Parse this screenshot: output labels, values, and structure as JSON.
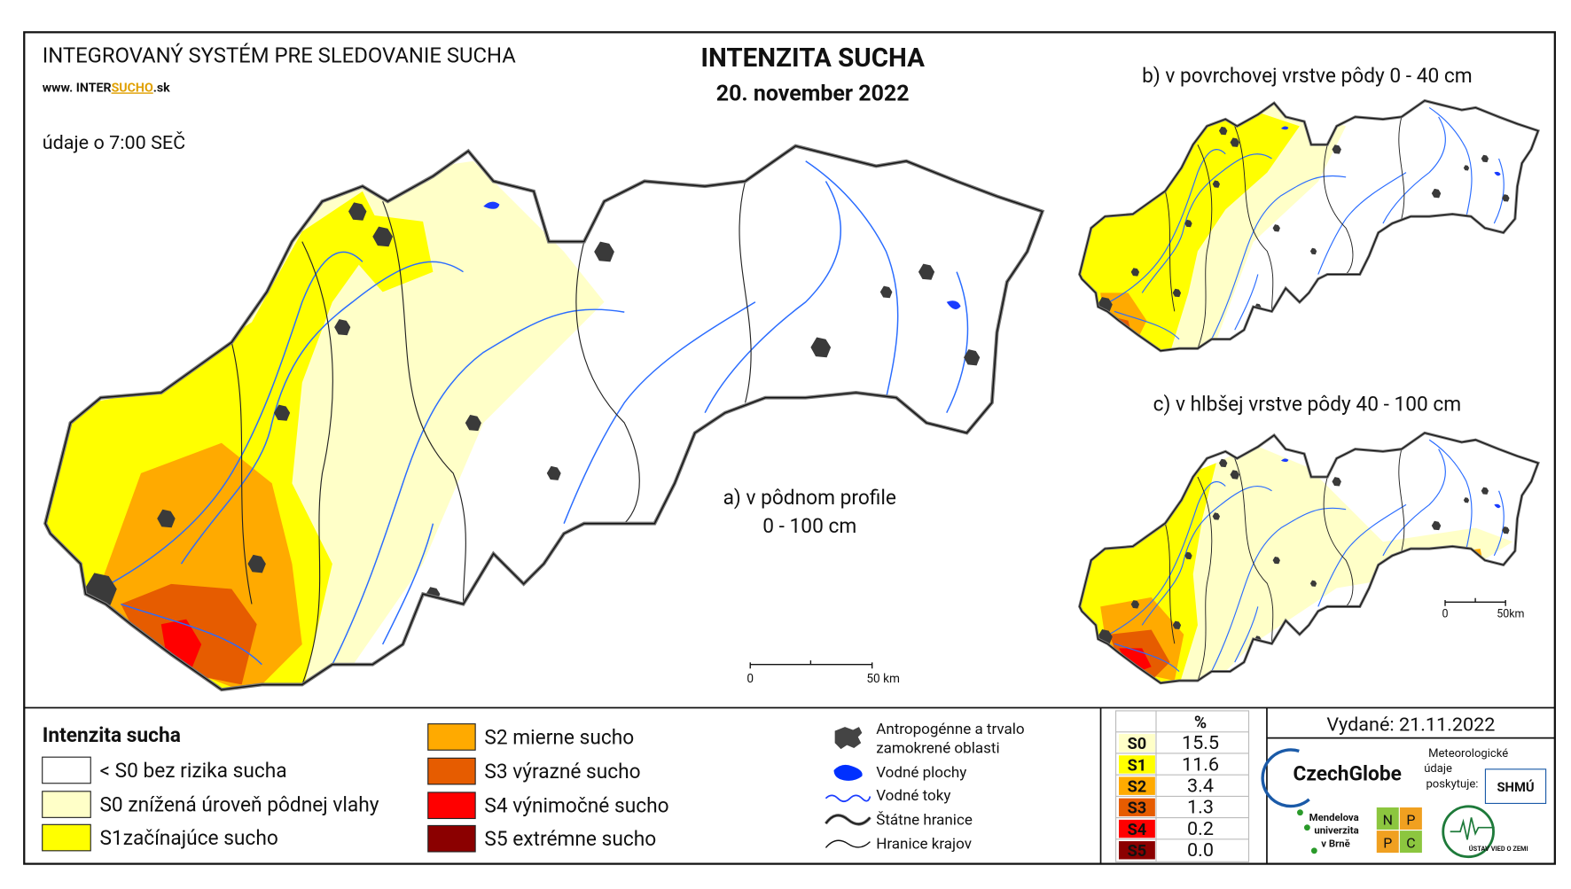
{
  "header": {
    "system": "INTEGROVANÝ SYSTÉM PRE SLEDOVANIE SUCHA",
    "website_prefix": "www. INTER",
    "website_highlight": "SUCHO",
    "website_suffix": ".sk",
    "time_note": "údaje o 7:00 SEČ",
    "title": "INTENZITA SUCHA",
    "date": "20. november 2022"
  },
  "maps": [
    {
      "label_lines": [
        "a) v pôdnom profile",
        "0 - 100 cm"
      ],
      "scale_labels": [
        "0",
        "50 km"
      ]
    },
    {
      "label": "b) v povrchovej vrstve pôdy 0 - 40 cm"
    },
    {
      "label": "c) v hlbšej vrstve pôdy 40 - 100 cm",
      "scale_labels": [
        "0",
        "50km"
      ]
    }
  ],
  "legend": {
    "title": "Intenzita sucha",
    "items": [
      {
        "label": "< S0 bez rizika sucha",
        "color": "#ffffff"
      },
      {
        "label": "S0 znížená úroveň pôdnej vlahy",
        "color": "#ffffc8"
      },
      {
        "label": "S1začínajúce sucho",
        "color": "#ffff00"
      },
      {
        "label": "S2 mierne sucho",
        "color": "#ffaa00"
      },
      {
        "label": "S3 výrazné sucho",
        "color": "#e65c00"
      },
      {
        "label": "S4 výnimočné sucho",
        "color": "#ff0000"
      },
      {
        "label": "S5 extrémne sucho",
        "color": "#8b0000"
      }
    ]
  },
  "symbols": [
    "Antropogénne a trvalo zamokrené oblasti",
    "Vodné plochy",
    "Vodné toky",
    "Štátne hranice",
    "Hranice krajov"
  ],
  "stats": {
    "header": "%",
    "rows": [
      {
        "class": "S0",
        "value": "15.5",
        "color": "#ffffc8"
      },
      {
        "class": "S1",
        "value": "11.6",
        "color": "#ffff00"
      },
      {
        "class": "S2",
        "value": "3.4",
        "color": "#ffaa00"
      },
      {
        "class": "S3",
        "value": "1.3",
        "color": "#e65c00"
      },
      {
        "class": "S4",
        "value": "0.2",
        "color": "#ff0000"
      },
      {
        "class": "S5",
        "value": "0.0",
        "color": "#8b0000"
      }
    ]
  },
  "issued": "Vydané: 21.11.2022",
  "logos": {
    "czechglobe": "CzechGlobe",
    "meteo": [
      "Meteorologické",
      "údaje",
      "poskytuje:"
    ],
    "shmu": "SHMÚ",
    "mendel": [
      "Mendelova",
      "univerzita",
      "v Brně"
    ],
    "nppc": [
      "N",
      "P",
      "P",
      "C"
    ],
    "uvz": "ÚSTAV VIED O ZEMI"
  }
}
